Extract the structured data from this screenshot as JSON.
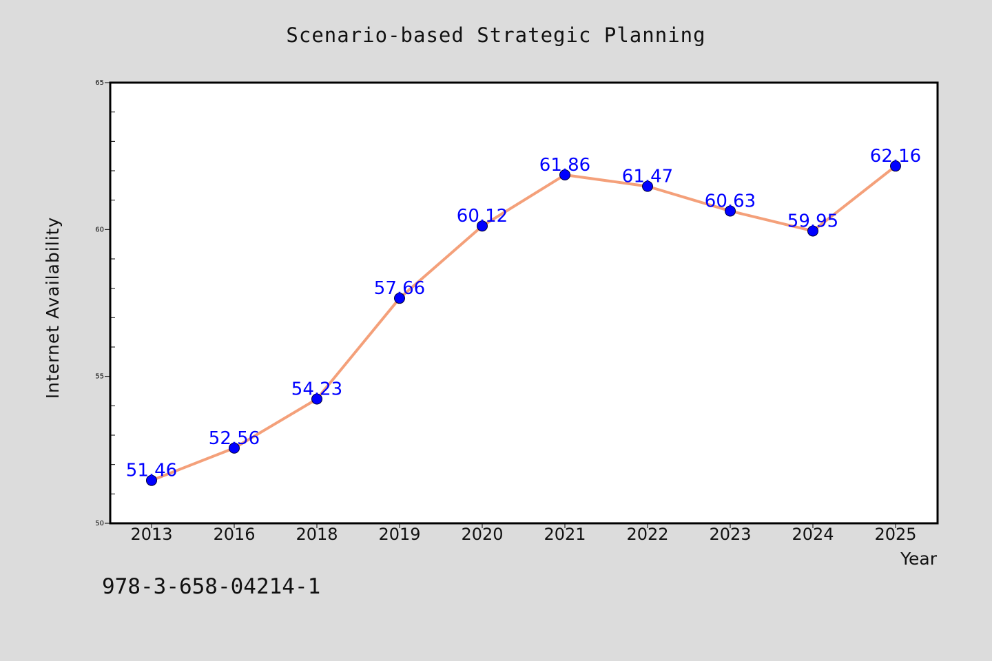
{
  "title": "Scenario-based Strategic Planning",
  "footer_text": "978-3-658-04214-1",
  "chart_data": {
    "type": "line",
    "title": "Scenario-based Strategic Planning",
    "xlabel": "Year",
    "ylabel": "Internet Availability",
    "categories": [
      "2013",
      "2016",
      "2018",
      "2019",
      "2020",
      "2021",
      "2022",
      "2023",
      "2024",
      "2025"
    ],
    "series": [
      {
        "values": [
          51.46,
          52.56,
          54.23,
          57.66,
          60.12,
          61.86,
          61.47,
          60.63,
          59.95,
          62.16
        ]
      }
    ],
    "data_labels": [
      "51.46",
      "52.56",
      "54.23",
      "57.66",
      "60.12",
      "61.86",
      "61.47",
      "60.63",
      "59.95",
      "62.16"
    ],
    "ylim": [
      50,
      65
    ],
    "yticks": [
      50,
      55,
      60,
      65
    ],
    "grid": false,
    "line_color": "#f4a07a",
    "marker_color": "#0000ff",
    "label_color": "#0000ff"
  }
}
